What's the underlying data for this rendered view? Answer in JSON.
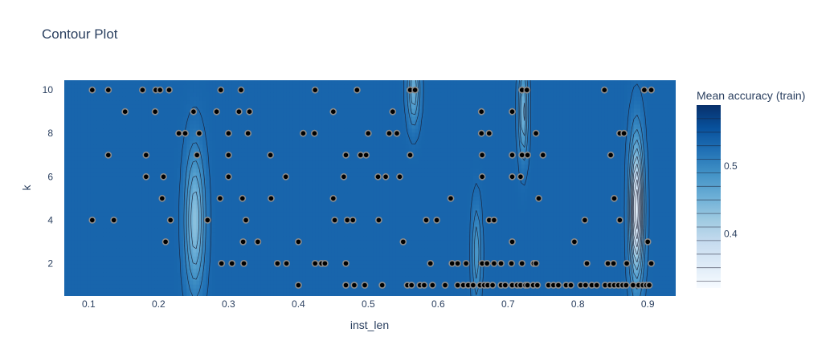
{
  "chart_data": {
    "type": "contour",
    "title": "Contour Plot",
    "xlabel": "inst_len",
    "ylabel": "k",
    "colorbar_title": "Mean accuracy (train)",
    "xlim": [
      0.065,
      0.94
    ],
    "ylim": [
      0.5,
      10.45
    ],
    "x_ticks": [
      0.1,
      0.2,
      0.3,
      0.4,
      0.5,
      0.6,
      0.7,
      0.8,
      0.9
    ],
    "y_ticks": [
      2,
      4,
      6,
      8,
      10
    ],
    "colorbar_range": [
      0.32,
      0.59
    ],
    "colorbar_ticks": [
      0.4,
      0.5
    ],
    "colorbar_levels": [
      0.33,
      0.35,
      0.37,
      0.39,
      0.41,
      0.43,
      0.45,
      0.47,
      0.49,
      0.51,
      0.53,
      0.55,
      0.57
    ],
    "colorscale": [
      "#f7fbff",
      "#deebf7",
      "#c6dbef",
      "#9ecae1",
      "#6baed6",
      "#4292c6",
      "#2171b5",
      "#08519c",
      "#08306b"
    ],
    "background_value": 0.535,
    "minima": [
      {
        "x": 0.252,
        "y": 4.0,
        "value": 0.43,
        "x_width": 0.013,
        "y_width": 3.0
      },
      {
        "x": 0.565,
        "y": 10.0,
        "value": 0.45,
        "x_width": 0.008,
        "y_width": 1.5
      },
      {
        "x": 0.722,
        "y": 9.0,
        "value": 0.44,
        "x_width": 0.006,
        "y_width": 2.0
      },
      {
        "x": 0.655,
        "y": 2.5,
        "value": 0.47,
        "x_width": 0.006,
        "y_width": 2.0
      },
      {
        "x": 0.884,
        "y": 4.5,
        "value": 0.33,
        "x_width": 0.009,
        "y_width": 3.0
      }
    ],
    "points": [
      [
        0.105,
        10
      ],
      [
        0.128,
        10
      ],
      [
        0.177,
        10
      ],
      [
        0.196,
        10
      ],
      [
        0.202,
        10
      ],
      [
        0.215,
        10
      ],
      [
        0.289,
        10
      ],
      [
        0.318,
        10
      ],
      [
        0.424,
        10
      ],
      [
        0.484,
        10
      ],
      [
        0.56,
        10
      ],
      [
        0.567,
        10
      ],
      [
        0.72,
        10
      ],
      [
        0.727,
        10
      ],
      [
        0.838,
        10
      ],
      [
        0.895,
        10
      ],
      [
        0.905,
        10
      ],
      [
        0.152,
        9
      ],
      [
        0.195,
        9
      ],
      [
        0.25,
        9
      ],
      [
        0.283,
        9
      ],
      [
        0.315,
        9
      ],
      [
        0.33,
        9
      ],
      [
        0.45,
        9
      ],
      [
        0.535,
        9
      ],
      [
        0.662,
        9
      ],
      [
        0.706,
        9
      ],
      [
        0.229,
        8
      ],
      [
        0.238,
        8
      ],
      [
        0.258,
        8
      ],
      [
        0.3,
        8
      ],
      [
        0.328,
        8
      ],
      [
        0.407,
        8
      ],
      [
        0.423,
        8
      ],
      [
        0.5,
        8
      ],
      [
        0.53,
        8
      ],
      [
        0.541,
        8
      ],
      [
        0.662,
        8
      ],
      [
        0.673,
        8
      ],
      [
        0.74,
        8
      ],
      [
        0.86,
        8
      ],
      [
        0.866,
        8
      ],
      [
        0.128,
        7
      ],
      [
        0.182,
        7
      ],
      [
        0.255,
        7
      ],
      [
        0.3,
        7
      ],
      [
        0.36,
        7
      ],
      [
        0.468,
        7
      ],
      [
        0.489,
        7
      ],
      [
        0.497,
        7
      ],
      [
        0.56,
        7
      ],
      [
        0.663,
        7
      ],
      [
        0.706,
        7
      ],
      [
        0.72,
        7
      ],
      [
        0.728,
        7
      ],
      [
        0.75,
        7
      ],
      [
        0.847,
        7
      ],
      [
        0.182,
        6
      ],
      [
        0.207,
        6
      ],
      [
        0.3,
        6
      ],
      [
        0.382,
        6
      ],
      [
        0.465,
        6
      ],
      [
        0.514,
        6
      ],
      [
        0.525,
        6
      ],
      [
        0.545,
        6
      ],
      [
        0.663,
        6
      ],
      [
        0.706,
        6
      ],
      [
        0.718,
        6
      ],
      [
        0.205,
        5
      ],
      [
        0.288,
        5
      ],
      [
        0.32,
        5
      ],
      [
        0.361,
        5
      ],
      [
        0.45,
        5
      ],
      [
        0.618,
        5
      ],
      [
        0.744,
        5
      ],
      [
        0.852,
        5
      ],
      [
        0.105,
        4
      ],
      [
        0.136,
        4
      ],
      [
        0.217,
        4
      ],
      [
        0.27,
        4
      ],
      [
        0.325,
        4
      ],
      [
        0.452,
        4
      ],
      [
        0.47,
        4
      ],
      [
        0.478,
        4
      ],
      [
        0.515,
        4
      ],
      [
        0.583,
        4
      ],
      [
        0.598,
        4
      ],
      [
        0.673,
        4
      ],
      [
        0.68,
        4
      ],
      [
        0.81,
        4
      ],
      [
        0.86,
        4
      ],
      [
        0.21,
        3
      ],
      [
        0.321,
        3
      ],
      [
        0.342,
        3
      ],
      [
        0.4,
        3
      ],
      [
        0.55,
        3
      ],
      [
        0.706,
        3
      ],
      [
        0.795,
        3
      ],
      [
        0.9,
        3
      ],
      [
        0.29,
        2
      ],
      [
        0.305,
        2
      ],
      [
        0.322,
        2
      ],
      [
        0.37,
        2
      ],
      [
        0.383,
        2
      ],
      [
        0.424,
        2
      ],
      [
        0.433,
        2
      ],
      [
        0.438,
        2
      ],
      [
        0.468,
        2
      ],
      [
        0.589,
        2
      ],
      [
        0.62,
        2
      ],
      [
        0.628,
        2
      ],
      [
        0.64,
        2
      ],
      [
        0.663,
        2
      ],
      [
        0.67,
        2
      ],
      [
        0.68,
        2
      ],
      [
        0.69,
        2
      ],
      [
        0.705,
        2
      ],
      [
        0.72,
        2
      ],
      [
        0.737,
        2
      ],
      [
        0.74,
        2
      ],
      [
        0.813,
        2
      ],
      [
        0.843,
        2
      ],
      [
        0.851,
        2
      ],
      [
        0.87,
        2
      ],
      [
        0.905,
        2
      ],
      [
        0.4,
        1
      ],
      [
        0.468,
        1
      ],
      [
        0.48,
        1
      ],
      [
        0.495,
        1
      ],
      [
        0.52,
        1
      ],
      [
        0.556,
        1
      ],
      [
        0.562,
        1
      ],
      [
        0.574,
        1
      ],
      [
        0.58,
        1
      ],
      [
        0.592,
        1
      ],
      [
        0.61,
        1
      ],
      [
        0.628,
        1
      ],
      [
        0.636,
        1
      ],
      [
        0.643,
        1
      ],
      [
        0.65,
        1
      ],
      [
        0.66,
        1
      ],
      [
        0.666,
        1
      ],
      [
        0.671,
        1
      ],
      [
        0.678,
        1
      ],
      [
        0.69,
        1
      ],
      [
        0.696,
        1
      ],
      [
        0.706,
        1
      ],
      [
        0.713,
        1
      ],
      [
        0.718,
        1
      ],
      [
        0.725,
        1
      ],
      [
        0.728,
        1
      ],
      [
        0.736,
        1
      ],
      [
        0.742,
        1
      ],
      [
        0.758,
        1
      ],
      [
        0.765,
        1
      ],
      [
        0.772,
        1
      ],
      [
        0.783,
        1
      ],
      [
        0.79,
        1
      ],
      [
        0.804,
        1
      ],
      [
        0.811,
        1
      ],
      [
        0.82,
        1
      ],
      [
        0.827,
        1
      ],
      [
        0.839,
        1
      ],
      [
        0.846,
        1
      ],
      [
        0.852,
        1
      ],
      [
        0.858,
        1
      ],
      [
        0.864,
        1
      ],
      [
        0.869,
        1
      ],
      [
        0.879,
        1
      ],
      [
        0.887,
        1
      ],
      [
        0.893,
        1
      ],
      [
        0.898,
        1
      ],
      [
        0.902,
        1
      ]
    ]
  }
}
